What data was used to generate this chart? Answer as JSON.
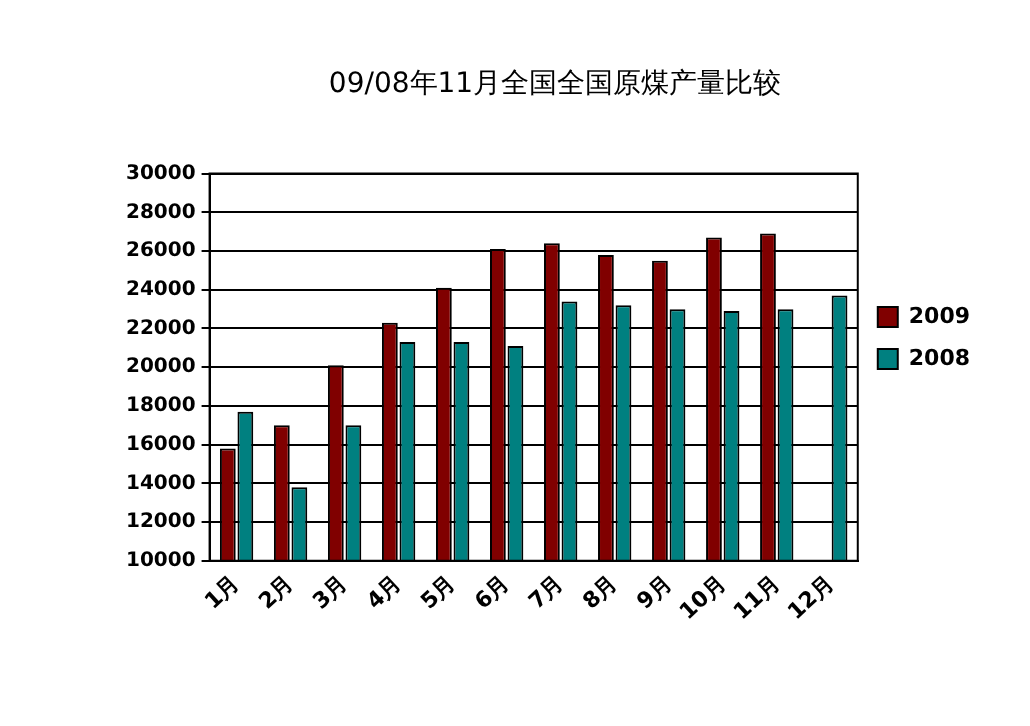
{
  "chart_data": {
    "type": "bar",
    "title": "09/08年11月全国全国原煤产量比较",
    "categories": [
      "1月",
      "2月",
      "3月",
      "4月",
      "5月",
      "6月",
      "7月",
      "8月",
      "9月",
      "10月",
      "11月",
      "12月"
    ],
    "series": [
      {
        "name": "2009",
        "color": "#800000",
        "values": [
          15800,
          17000,
          20100,
          22300,
          24100,
          26100,
          26400,
          25800,
          25500,
          26700,
          26900,
          null
        ]
      },
      {
        "name": "2008",
        "color": "#008080",
        "values": [
          17700,
          13800,
          17000,
          21300,
          21300,
          21100,
          23400,
          23200,
          23000,
          22900,
          23000,
          23700
        ]
      }
    ],
    "ylim": [
      10000,
      30000
    ],
    "yticks": [
      10000,
      12000,
      14000,
      16000,
      18000,
      20000,
      22000,
      24000,
      26000,
      28000,
      30000
    ],
    "grid": "y",
    "legend": "right"
  }
}
